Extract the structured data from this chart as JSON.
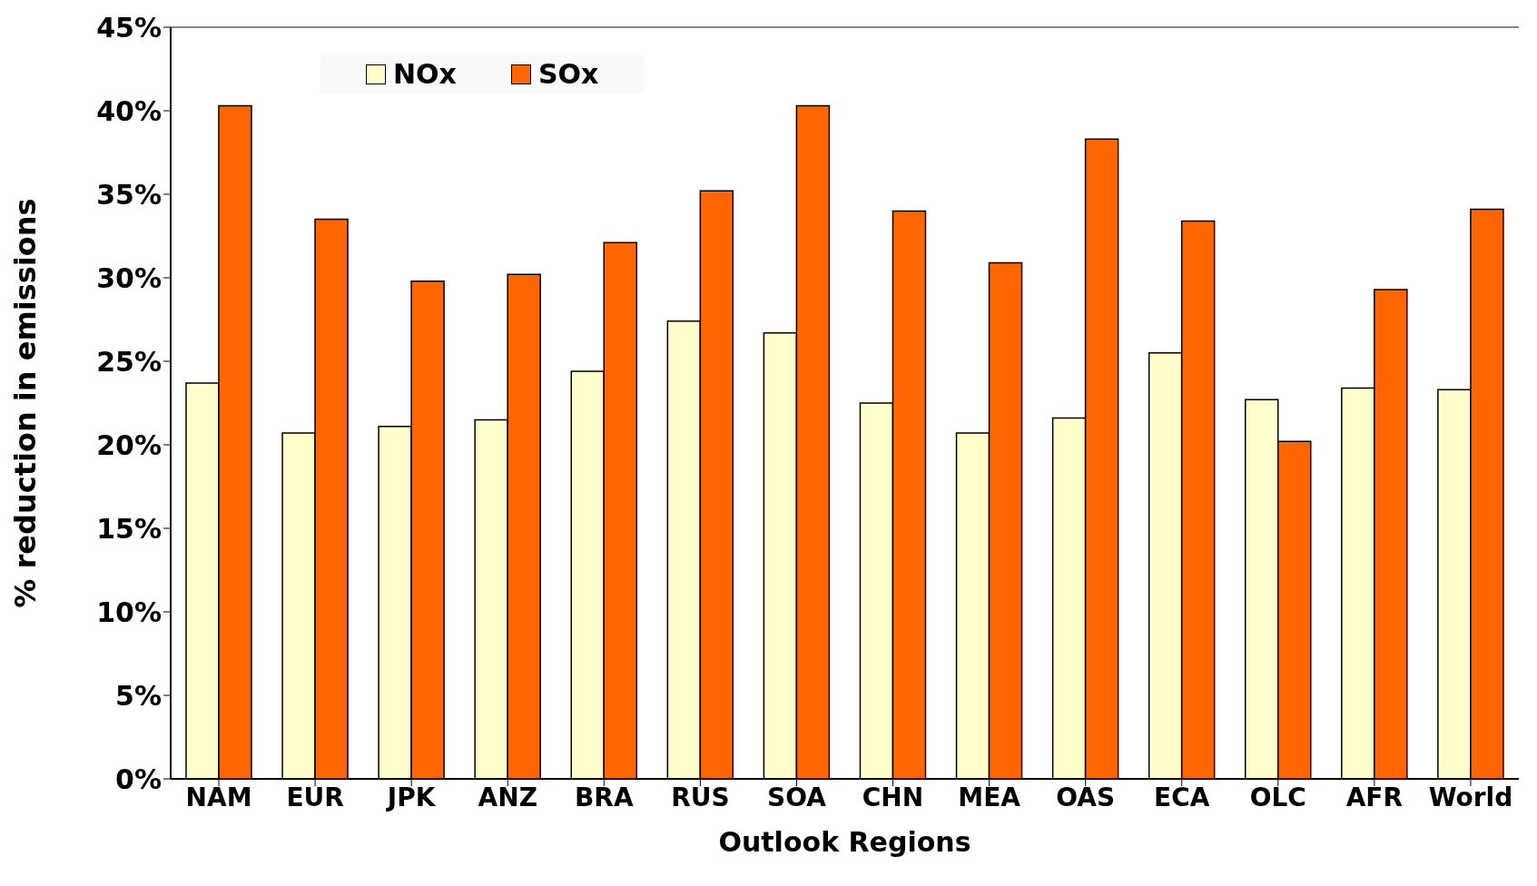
{
  "chart_data": {
    "type": "bar",
    "xlabel": "Outlook Regions",
    "ylabel": "% reduction in emissions",
    "categories": [
      "NAM",
      "EUR",
      "JPK",
      "ANZ",
      "BRA",
      "RUS",
      "SOA",
      "CHN",
      "MEA",
      "OAS",
      "ECA",
      "OLC",
      "AFR",
      "World"
    ],
    "series": [
      {
        "name": "NOx",
        "color": "#ffffcc",
        "values": [
          23.7,
          20.7,
          21.1,
          21.5,
          24.4,
          27.4,
          26.7,
          22.5,
          20.7,
          21.6,
          25.5,
          22.7,
          23.4,
          23.3
        ]
      },
      {
        "name": "SOx",
        "color": "#ff6600",
        "values": [
          40.3,
          33.5,
          29.8,
          30.2,
          32.1,
          35.2,
          40.3,
          34.0,
          30.9,
          38.3,
          33.4,
          20.2,
          29.3,
          34.1
        ]
      }
    ],
    "ylim": [
      0,
      45
    ],
    "yticks": [
      {
        "value": 0,
        "label": "0%"
      },
      {
        "value": 5,
        "label": "5%"
      },
      {
        "value": 10,
        "label": "10%"
      },
      {
        "value": 15,
        "label": "15%"
      },
      {
        "value": 20,
        "label": "20%"
      },
      {
        "value": 25,
        "label": "25%"
      },
      {
        "value": 30,
        "label": "30%"
      },
      {
        "value": 35,
        "label": "35%"
      },
      {
        "value": 40,
        "label": "40%"
      },
      {
        "value": 45,
        "label": "45%"
      }
    ],
    "grid": false,
    "legend": "top left"
  }
}
